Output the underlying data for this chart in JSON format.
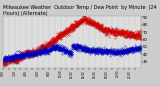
{
  "title": "Milwaukee Weather  Outdoor Temp / Dew Point  by Minute  (24 Hours) (Alternate)",
  "title_fontsize": 3.5,
  "bg_color": "#cccccc",
  "plot_bg_color": "#dddddd",
  "red_color": "#cc0000",
  "blue_color": "#0000bb",
  "ylim": [
    22,
    92
  ],
  "yticks": [
    30,
    40,
    50,
    60,
    70,
    80,
    90
  ],
  "num_points": 1440,
  "grid_color": "#bbbbbb",
  "markersize": 0.5
}
